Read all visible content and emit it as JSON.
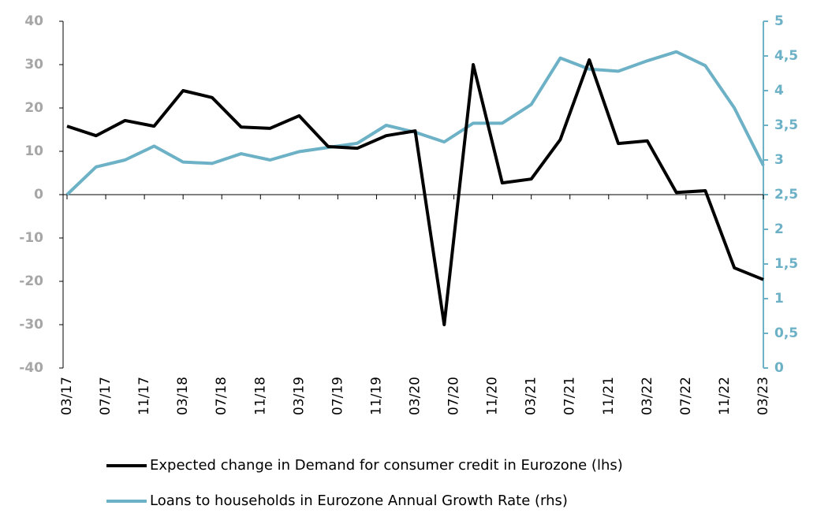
{
  "chart_data": {
    "type": "line",
    "x": [
      "03/17",
      "06/17",
      "09/17",
      "12/17",
      "03/18",
      "06/18",
      "09/18",
      "12/18",
      "03/19",
      "06/19",
      "09/19",
      "12/19",
      "03/20",
      "06/20",
      "09/20",
      "12/20",
      "03/21",
      "06/21",
      "09/21",
      "12/21",
      "03/22",
      "06/22",
      "09/22",
      "12/22",
      "03/23"
    ],
    "xlim": [
      "03/17",
      "03/23"
    ],
    "xticks": [
      "03/17",
      "07/17",
      "11/17",
      "03/18",
      "07/18",
      "11/18",
      "03/19",
      "07/19",
      "11/19",
      "03/20",
      "07/20",
      "11/20",
      "03/21",
      "07/21",
      "11/21",
      "03/22",
      "07/22",
      "11/22",
      "03/23"
    ],
    "ylim": [
      -40,
      40
    ],
    "yticks": [
      -40,
      -30,
      -20,
      -10,
      0,
      10,
      20,
      30,
      40
    ],
    "y2lim": [
      0,
      5
    ],
    "y2ticks": [
      0,
      {
        "value": 0.5,
        "label": "0,5"
      },
      1,
      {
        "value": 1.5,
        "label": "1,5"
      },
      2,
      {
        "value": 2.5,
        "label": "2,5"
      },
      3,
      {
        "value": 3.5,
        "label": "3,5"
      },
      4,
      {
        "value": 4.5,
        "label": "4,5"
      },
      5
    ],
    "series": [
      {
        "name": "Expected change in Demand for consumer credit in Eurozone (lhs)",
        "color": "#000000",
        "values": [
          15.8,
          13.6,
          17.1,
          15.8,
          24,
          22.4,
          15.6,
          15.3,
          18.2,
          11.1,
          10.7,
          13.6,
          14.7,
          -30,
          30,
          2.7,
          3.6,
          12.7,
          31.1,
          11.8,
          12.4,
          0.5,
          0.9,
          -16.9,
          -19.6
        ]
      },
      {
        "name": "Loans to households in Eurozone Annual Growth Rate (rhs)",
        "color": "#6cb1c6",
        "axis": "y2",
        "values": [
          2.5,
          2.9,
          3.0,
          3.2,
          2.97,
          2.95,
          3.09,
          3.0,
          3.12,
          3.18,
          3.24,
          3.5,
          3.4,
          3.26,
          3.53,
          3.53,
          3.8,
          4.47,
          4.31,
          4.28,
          4.43,
          4.56,
          4.36,
          3.75,
          2.92
        ]
      }
    ]
  }
}
